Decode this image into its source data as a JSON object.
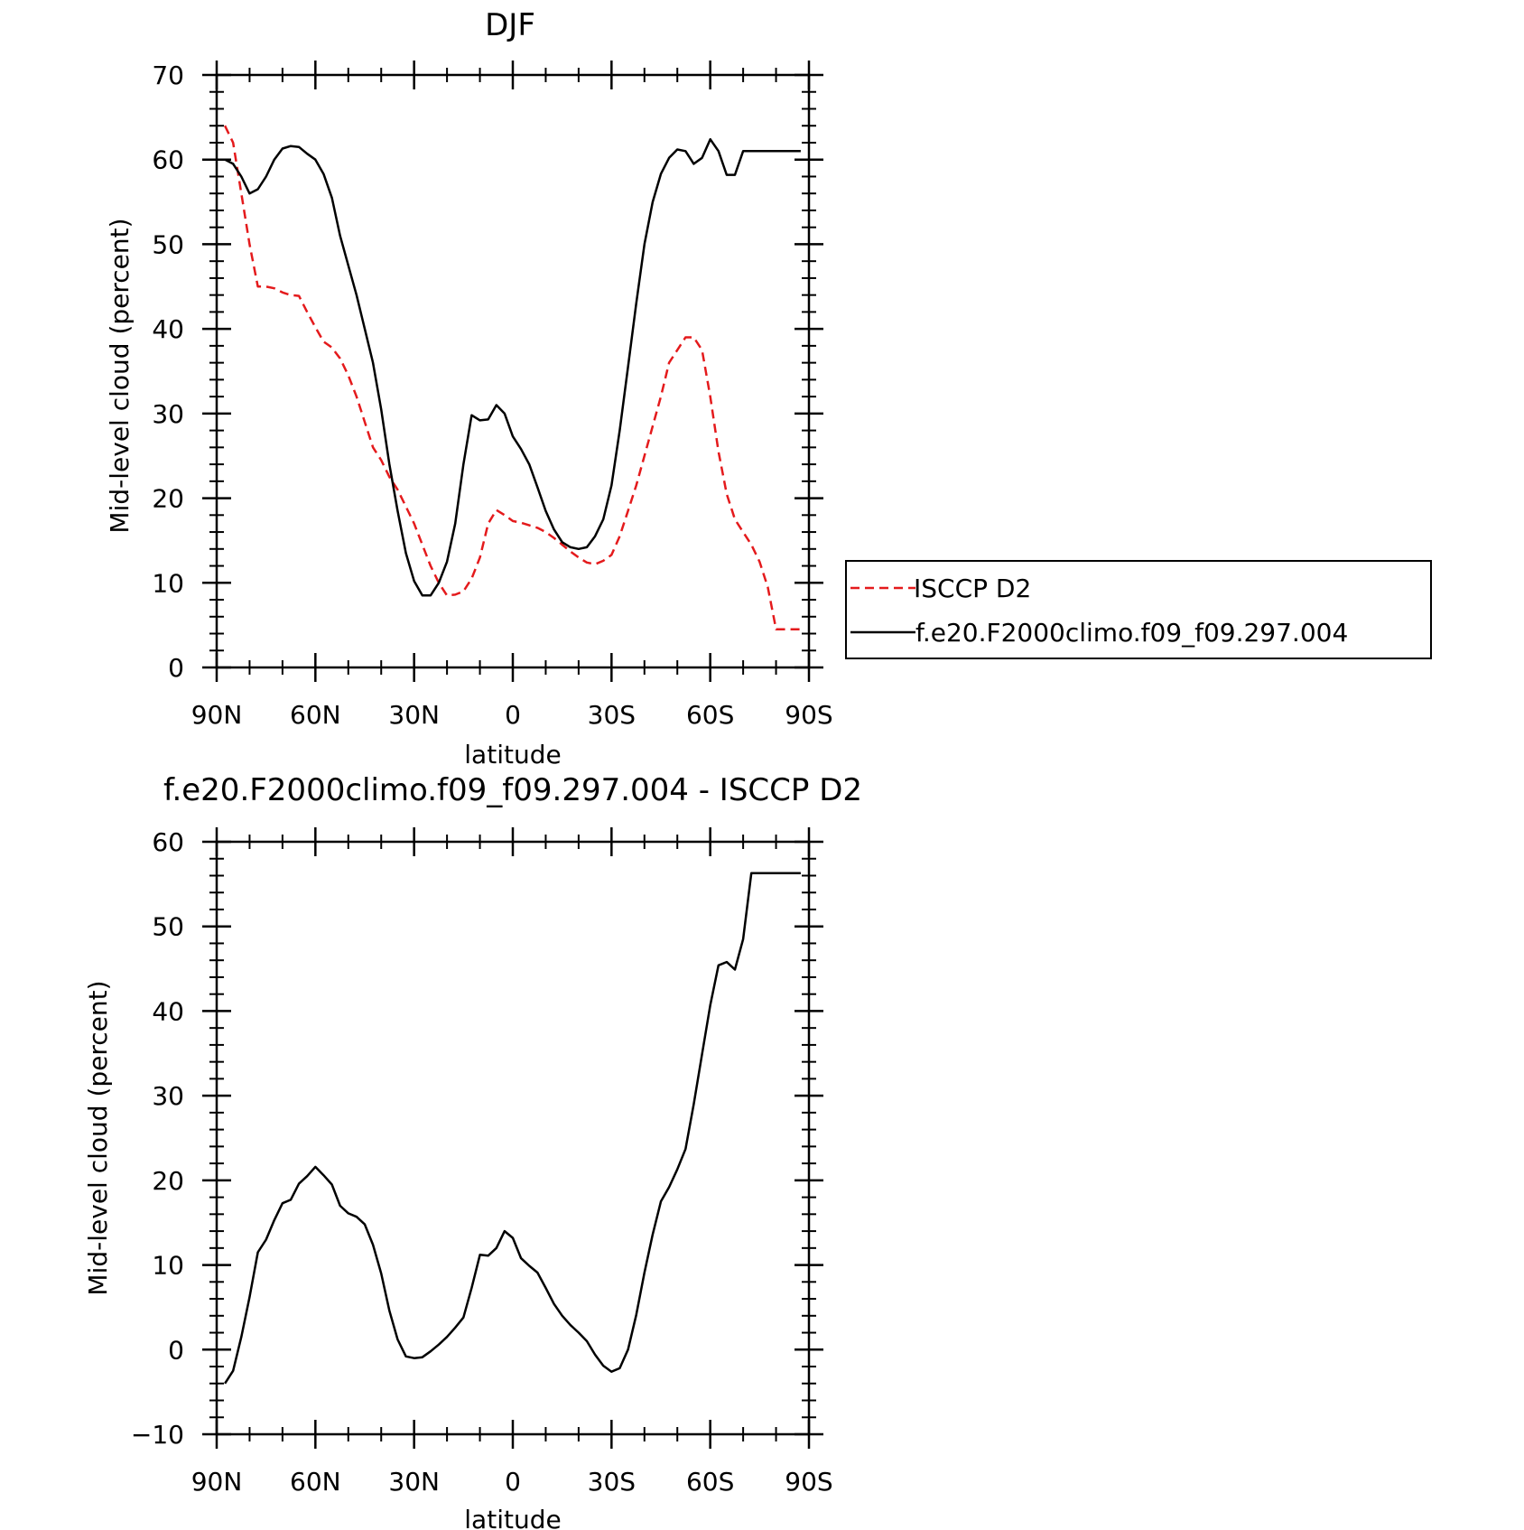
{
  "chart_data": [
    {
      "type": "line",
      "title": "DJF",
      "xlabel": "latitude",
      "ylabel": "Mid-level cloud (percent)",
      "xlim": [
        -90,
        90
      ],
      "ylim": [
        0,
        70
      ],
      "x_ticks": [
        -90,
        -60,
        -30,
        0,
        30,
        60,
        90
      ],
      "x_tick_labels": [
        "90N",
        "60N",
        "30N",
        "0",
        "30S",
        "60S",
        "90S"
      ],
      "y_ticks": [
        0,
        10,
        20,
        30,
        40,
        50,
        60,
        70
      ],
      "y_tick_labels": [
        "0",
        "10",
        "20",
        "30",
        "40",
        "50",
        "60",
        "70"
      ],
      "legend_placement": "right",
      "series": [
        {
          "name": "ISCCP D2",
          "color": "#e41a1c",
          "dash": "dashed",
          "x": [
            -87.5,
            -85,
            -82.5,
            -80,
            -77.5,
            -75,
            -72.5,
            -70,
            -67.5,
            -65,
            -62.5,
            -60,
            -57.5,
            -55,
            -52.5,
            -50,
            -47.5,
            -45,
            -42.5,
            -40,
            -37.5,
            -35,
            -32.5,
            -30,
            -27.5,
            -25,
            -22.5,
            -20,
            -17.5,
            -15,
            -12.5,
            -10,
            -7.5,
            -5,
            -2.5,
            0,
            2.5,
            5,
            7.5,
            10,
            12.5,
            15,
            17.5,
            20,
            22.5,
            25,
            27.5,
            30,
            32.5,
            35,
            37.5,
            40,
            42.5,
            45,
            47.5,
            50,
            52.5,
            55,
            57.5,
            60,
            62.5,
            65,
            67.5,
            70,
            72.5,
            75,
            77.5,
            80,
            82.5,
            85,
            87.5
          ],
          "values": [
            64,
            62,
            56,
            50,
            45,
            45,
            44.8,
            44.3,
            44,
            43.9,
            42,
            40.2,
            38.5,
            37.8,
            36.5,
            34.5,
            32,
            29,
            26,
            24.5,
            22.5,
            21,
            19,
            17,
            14.5,
            12,
            10,
            8.5,
            8.6,
            9,
            10.5,
            13,
            17,
            18.6,
            18,
            17.3,
            17.1,
            16.8,
            16.5,
            16,
            15.3,
            14.5,
            13.7,
            13,
            12.4,
            12.2,
            12.6,
            13.3,
            15.5,
            18.5,
            21.5,
            25,
            28.5,
            32,
            36,
            37.5,
            39,
            39,
            37.5,
            32,
            25.5,
            20.5,
            17.5,
            16,
            14.5,
            12.5,
            9.5,
            4.5,
            4.5,
            4.5,
            4.5
          ]
        },
        {
          "name": "f.e20.F2000climo.f09_f09.297.004",
          "color": "#000000",
          "dash": "solid",
          "x": [
            -87.5,
            -85,
            -82.5,
            -80,
            -77.5,
            -75,
            -72.5,
            -70,
            -67.5,
            -65,
            -62.5,
            -60,
            -57.5,
            -55,
            -52.5,
            -50,
            -47.5,
            -45,
            -42.5,
            -40,
            -37.5,
            -35,
            -32.5,
            -30,
            -27.5,
            -25,
            -22.5,
            -20,
            -17.5,
            -15,
            -12.5,
            -10,
            -7.5,
            -5,
            -2.5,
            0,
            2.5,
            5,
            7.5,
            10,
            12.5,
            15,
            17.5,
            20,
            22.5,
            25,
            27.5,
            30,
            32.5,
            35,
            37.5,
            40,
            42.5,
            45,
            47.5,
            50,
            52.5,
            55,
            57.5,
            60,
            62.5,
            65,
            67.5,
            70,
            72.5,
            75,
            77.5,
            80,
            82.5,
            85,
            87.5
          ],
          "values": [
            60,
            59.5,
            58,
            56,
            56.5,
            58,
            60,
            61.3,
            61.6,
            61.5,
            60.7,
            60,
            58.3,
            55.5,
            51,
            47.5,
            44,
            40,
            36,
            30.5,
            24,
            18.5,
            13.5,
            10.2,
            8.5,
            8.5,
            10,
            12.5,
            17,
            24,
            29.8,
            29.2,
            29.3,
            31,
            30,
            27.3,
            25.8,
            24,
            21.3,
            18.5,
            16.3,
            14.8,
            14.2,
            14,
            14.2,
            15.5,
            17.5,
            21.5,
            28,
            35.5,
            43,
            50,
            55,
            58.3,
            60.2,
            61.2,
            61,
            59.5,
            60.2,
            62.4,
            61,
            58.2,
            58.2,
            61,
            61,
            61,
            61,
            61,
            61,
            61,
            61
          ]
        }
      ]
    },
    {
      "type": "line",
      "title": "f.e20.F2000climo.f09_f09.297.004 - ISCCP D2",
      "xlabel": "latitude",
      "ylabel": "Mid-level cloud (percent)",
      "xlim": [
        -90,
        90
      ],
      "ylim": [
        -10,
        60
      ],
      "x_ticks": [
        -90,
        -60,
        -30,
        0,
        30,
        60,
        90
      ],
      "x_tick_labels": [
        "90N",
        "60N",
        "30N",
        "0",
        "30S",
        "60S",
        "90S"
      ],
      "y_ticks": [
        -10,
        0,
        10,
        20,
        30,
        40,
        50,
        60
      ],
      "y_tick_labels": [
        "-10",
        "0",
        "10",
        "20",
        "30",
        "40",
        "50",
        "60"
      ],
      "series": [
        {
          "color": "#000000",
          "dash": "solid",
          "x": [
            -87.5,
            -85,
            -82.5,
            -80,
            -77.5,
            -75,
            -72.5,
            -70,
            -67.5,
            -65,
            -62.5,
            -60,
            -57.5,
            -55,
            -52.5,
            -50,
            -47.5,
            -45,
            -42.5,
            -40,
            -37.5,
            -35,
            -32.5,
            -30,
            -27.5,
            -25,
            -22.5,
            -20,
            -17.5,
            -15,
            -12.5,
            -10,
            -7.5,
            -5,
            -2.5,
            0,
            2.5,
            5,
            7.5,
            10,
            12.5,
            15,
            17.5,
            20,
            22.5,
            25,
            27.5,
            30,
            32.5,
            35,
            37.5,
            40,
            42.5,
            45,
            47.5,
            50,
            52.5,
            55,
            57.5,
            60,
            62.5,
            65,
            67.5,
            70,
            72.5,
            75,
            77.5,
            80,
            82.5,
            85,
            87.5
          ],
          "values": [
            -4,
            -2.5,
            1.5,
            6.2,
            11.5,
            13,
            15.3,
            17.3,
            17.7,
            19.6,
            20.5,
            21.6,
            20.6,
            19.5,
            17,
            16.1,
            15.7,
            14.8,
            12.4,
            9,
            4.6,
            1.2,
            -0.8,
            -1,
            -0.9,
            -0.2,
            0.6,
            1.5,
            2.6,
            3.8,
            7.3,
            11.2,
            11.1,
            12,
            14,
            13.2,
            10.8,
            9.9,
            9.1,
            7.3,
            5.4,
            4,
            2.9,
            2,
            1,
            -0.6,
            -1.9,
            -2.6,
            -2.2,
            0,
            4.1,
            9.1,
            13.6,
            17.5,
            19.2,
            21.3,
            23.7,
            29,
            34.9,
            40.7,
            45.4,
            45.8,
            44.9,
            48.5,
            56.3,
            56.3,
            56.3,
            56.3,
            56.3,
            56.3,
            56.3
          ]
        }
      ]
    }
  ]
}
